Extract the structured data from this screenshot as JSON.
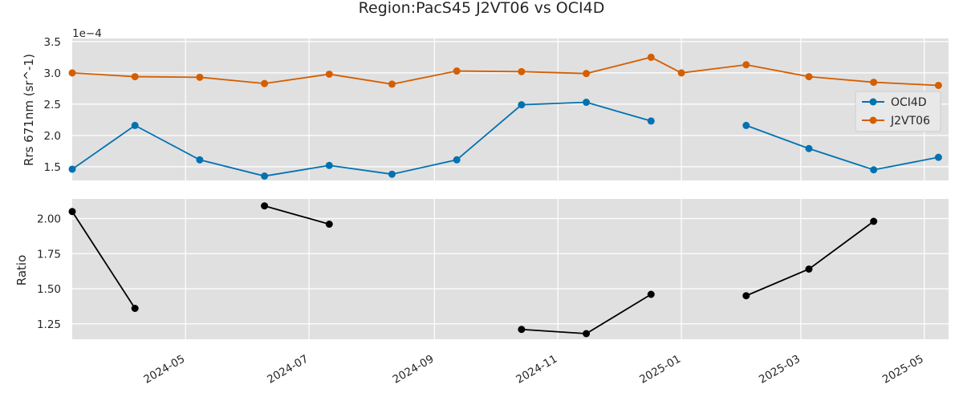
{
  "chart_data": {
    "type": "line",
    "title": "Region:PacS45 J2VT06 vs OCI4D",
    "x": [
      "2024-03-06",
      "2024-04-06",
      "2024-05-08",
      "2024-06-09",
      "2024-07-11",
      "2024-08-11",
      "2024-09-12",
      "2024-10-14",
      "2024-11-15",
      "2024-12-17",
      "2025-01-01",
      "2025-02-02",
      "2025-03-05",
      "2025-04-06",
      "2025-05-08"
    ],
    "xlim": [
      "2024-03-06",
      "2025-05-13"
    ],
    "xticks": [
      "2024-05",
      "2024-07",
      "2024-09",
      "2024-11",
      "2025-01",
      "2025-03",
      "2025-05"
    ],
    "panels": [
      {
        "ylabel": "Rrs 671nm (sr^-1)",
        "yscale_label": "1e−4",
        "ylim": [
          1.28,
          3.55
        ],
        "yticks": [
          "1.5",
          "2.0",
          "2.5",
          "3.0",
          "3.5"
        ],
        "series": [
          {
            "name": "OCI4D",
            "color": "#0072B2",
            "values": [
              1.46,
              2.16,
              1.61,
              1.35,
              1.52,
              1.38,
              1.61,
              2.49,
              2.53,
              2.23,
              null,
              2.16,
              1.79,
              1.45,
              1.65
            ]
          },
          {
            "name": "J2VT06",
            "color": "#D55E00",
            "values": [
              3.0,
              2.94,
              2.93,
              2.83,
              2.98,
              2.82,
              3.03,
              3.02,
              2.99,
              3.25,
              3.0,
              3.13,
              2.94,
              2.85,
              2.8
            ]
          }
        ],
        "legend": "right"
      },
      {
        "ylabel": "Ratio",
        "ylim": [
          1.14,
          2.14
        ],
        "yticks": [
          "1.25",
          "1.50",
          "1.75",
          "2.00"
        ],
        "series": [
          {
            "color": "#000000",
            "values": [
              2.05,
              1.36,
              null,
              2.09,
              1.96,
              null,
              null,
              1.21,
              1.18,
              1.46,
              null,
              1.45,
              1.64,
              1.98,
              null
            ]
          }
        ]
      }
    ],
    "grid": true
  }
}
